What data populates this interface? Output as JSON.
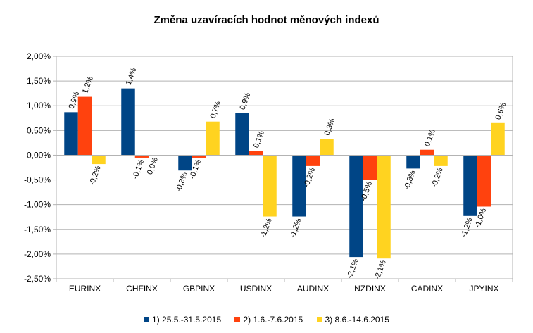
{
  "chart_data": {
    "type": "bar",
    "title": "Změna uzavíracích hodnot měnových indexů",
    "categories": [
      "EURINX",
      "CHFINX",
      "GBPINX",
      "USDINX",
      "AUDINX",
      "NZDINX",
      "CADINX",
      "JPYINX"
    ],
    "series": [
      {
        "name": "1) 25.5.-31.5.2015",
        "color": "#004586",
        "values": [
          0.87,
          1.35,
          -0.31,
          0.85,
          -1.24,
          -2.06,
          -0.27,
          -1.23
        ],
        "labels": [
          "0,9%",
          "1,4%",
          "-0,3%",
          "0,9%",
          "-1,2%",
          "-2,1%",
          "-0,3%",
          "-1,2%"
        ]
      },
      {
        "name": "2) 1.6.-7.6.2015",
        "color": "#ff420e",
        "values": [
          1.18,
          -0.05,
          -0.05,
          0.08,
          -0.22,
          -0.5,
          0.11,
          -1.04
        ],
        "labels": [
          "1,2%",
          "-0,1%",
          "-0,1%",
          "0,1%",
          "-0,2%",
          "-0,5%",
          "0,1%",
          "-1,0%"
        ]
      },
      {
        "name": "3) 8.6.-14.6.2015",
        "color": "#ffd320",
        "values": [
          -0.18,
          -0.01,
          0.68,
          -1.24,
          0.33,
          -2.09,
          -0.22,
          0.65
        ],
        "labels": [
          "-0,2%",
          "0,0%",
          "0,7%",
          "-1,2%",
          "0,3%",
          "-2,1%",
          "-0,2%",
          "0,6%"
        ]
      }
    ],
    "ylim": [
      -2.5,
      2.0
    ],
    "yticks": [
      "2,00%",
      "1,50%",
      "1,00%",
      "0,50%",
      "0,00%",
      "-0,50%",
      "-1,00%",
      "-1,50%",
      "-2,00%",
      "-2,50%"
    ],
    "grid": true,
    "legend": "bottom"
  }
}
